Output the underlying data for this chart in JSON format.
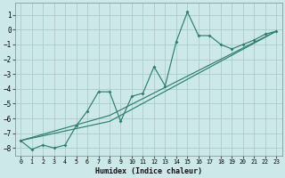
{
  "xlabel": "Humidex (Indice chaleur)",
  "ylabel": "",
  "background_color": "#cce8e8",
  "grid_color": "#aacccc",
  "line_color": "#2d7f6e",
  "xlim": [
    -0.5,
    23.5
  ],
  "ylim": [
    -8.5,
    1.8
  ],
  "yticks": [
    1,
    0,
    -1,
    -2,
    -3,
    -4,
    -5,
    -6,
    -7,
    -8
  ],
  "xticks": [
    0,
    1,
    2,
    3,
    4,
    5,
    6,
    7,
    8,
    9,
    10,
    11,
    12,
    13,
    14,
    15,
    16,
    17,
    18,
    19,
    20,
    21,
    22,
    23
  ],
  "main_x": [
    0,
    1,
    2,
    3,
    4,
    5,
    6,
    7,
    8,
    9,
    10,
    11,
    12,
    13,
    14,
    15,
    16,
    17,
    18,
    19,
    20,
    21,
    22,
    23
  ],
  "main_y": [
    -7.5,
    -8.1,
    -7.8,
    -8.0,
    -7.8,
    -6.5,
    -5.5,
    -4.2,
    -4.2,
    -6.2,
    -4.5,
    -4.3,
    -2.5,
    -3.8,
    -0.8,
    1.2,
    -0.4,
    -0.4,
    -1.0,
    -1.3,
    -1.0,
    -0.7,
    -0.3,
    -0.1
  ],
  "trend1_x": [
    0,
    8,
    23
  ],
  "trend1_y": [
    -7.5,
    -5.8,
    -0.1
  ],
  "trend2_x": [
    0,
    8,
    23
  ],
  "trend2_y": [
    -7.5,
    -6.2,
    -0.1
  ]
}
